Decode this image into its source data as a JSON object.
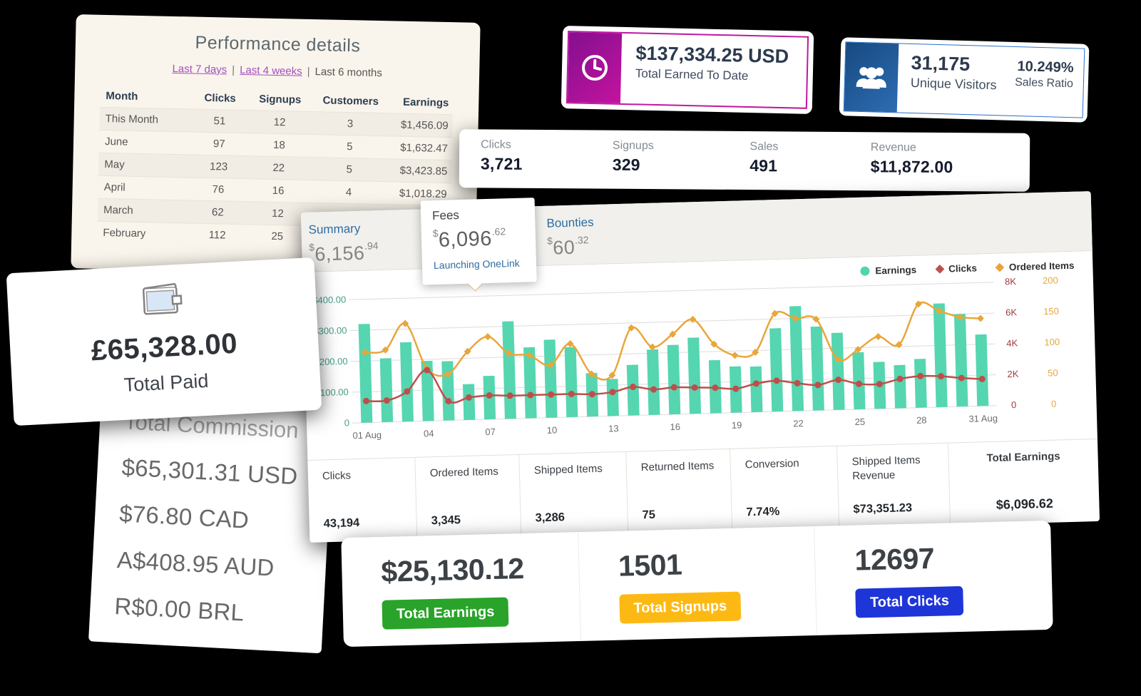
{
  "performance_card": {
    "title": "Performance details",
    "separator": "|",
    "filters": [
      {
        "label": "Last 7 days",
        "link": true
      },
      {
        "label": "Last 4 weeks",
        "link": true
      },
      {
        "label": "Last 6 months",
        "link": false
      }
    ],
    "columns": [
      "Month",
      "Clicks",
      "Signups",
      "Customers",
      "Earnings"
    ],
    "rows": [
      [
        "This Month",
        "51",
        "12",
        "3",
        "$1,456.09"
      ],
      [
        "June",
        "97",
        "18",
        "5",
        "$1,632.47"
      ],
      [
        "May",
        "123",
        "22",
        "5",
        "$3,423.85"
      ],
      [
        "April",
        "76",
        "16",
        "4",
        "$1,018.29"
      ],
      [
        "March",
        "62",
        "12",
        "",
        ""
      ],
      [
        "February",
        "112",
        "25",
        "",
        ""
      ]
    ]
  },
  "earned_card": {
    "value": "$137,334.25 USD",
    "label": "Total Earned To Date",
    "icon": "clock-icon",
    "accent": "#bf18a2"
  },
  "visitors_card": {
    "value": "31,175",
    "label": "Unique Visitors",
    "ratio_value": "10.249%",
    "ratio_label": "Sales Ratio",
    "icon": "users-icon",
    "accent": "#2a70c8"
  },
  "stats_bar": [
    {
      "label": "Clicks",
      "value": "3,721"
    },
    {
      "label": "Signups",
      "value": "329"
    },
    {
      "label": "Sales",
      "value": "491"
    },
    {
      "label": "Revenue",
      "value": "$11,872.00"
    }
  ],
  "associates_card": {
    "tabs": [
      {
        "label": "Summary",
        "currency": "$",
        "value_int": "6,156",
        "value_dec": ".94"
      },
      {
        "label": "Fees",
        "currency": "$",
        "value_int": "6,096",
        "value_dec": ".62",
        "link_label": "Launching OneLink"
      },
      {
        "label": "Bounties",
        "currency": "$",
        "value_int": "60",
        "value_dec": ".32"
      }
    ],
    "legend": [
      {
        "label": "Earnings",
        "color": "#52d3b0",
        "shape": "circle"
      },
      {
        "label": "Clicks",
        "color": "#c0504d",
        "shape": "diamond"
      },
      {
        "label": "Ordered Items",
        "color": "#e8a33d",
        "shape": "diamond"
      }
    ],
    "bottom_stats": [
      {
        "label": "Clicks",
        "value": "43,194",
        "emph": false
      },
      {
        "label": "Ordered Items",
        "value": "3,345",
        "emph": false
      },
      {
        "label": "Shipped Items",
        "value": "3,286",
        "emph": false
      },
      {
        "label": "Returned Items",
        "value": "75",
        "emph": false
      },
      {
        "label": "Conversion",
        "value": "7.74%",
        "emph": false
      },
      {
        "label": "Shipped Items Revenue",
        "value": "$73,351.23",
        "emph": false
      },
      {
        "label": "Total Earnings",
        "value": "$6,096.62",
        "emph": true
      }
    ]
  },
  "chart_data": {
    "type": "bar+line",
    "days": [
      1,
      2,
      3,
      4,
      5,
      6,
      7,
      8,
      9,
      10,
      11,
      12,
      13,
      14,
      15,
      16,
      17,
      18,
      19,
      20,
      21,
      22,
      23,
      24,
      25,
      26,
      27,
      28,
      29,
      30,
      31
    ],
    "x_ticks": [
      {
        "day": 1,
        "label": "01 Aug"
      },
      {
        "day": 4,
        "label": "04"
      },
      {
        "day": 7,
        "label": "07"
      },
      {
        "day": 10,
        "label": "10"
      },
      {
        "day": 13,
        "label": "13"
      },
      {
        "day": 16,
        "label": "16"
      },
      {
        "day": 19,
        "label": "19"
      },
      {
        "day": 22,
        "label": "22"
      },
      {
        "day": 25,
        "label": "25"
      },
      {
        "day": 28,
        "label": "28"
      },
      {
        "day": 31,
        "label": "31 Aug"
      }
    ],
    "series": [
      {
        "name": "Earnings",
        "type": "bar",
        "axis": "left_usd",
        "color": "#55d6b0",
        "values": [
          320,
          207,
          257,
          195,
          192,
          116,
          141,
          316,
          230,
          253,
          227,
          141,
          120,
          164,
          212,
          225,
          247,
          172,
          150,
          148,
          270,
          340,
          272,
          250,
          185,
          152,
          140,
          158,
          336,
          300,
          232
        ]
      },
      {
        "name": "Clicks",
        "type": "line",
        "axis": "right_clicks",
        "color": "#bf4e4b",
        "values": [
          1400,
          1400,
          1950,
          3300,
          1250,
          1450,
          1550,
          1500,
          1500,
          1500,
          1500,
          1450,
          1550,
          1850,
          1650,
          1750,
          1700,
          1650,
          1550,
          1850,
          2000,
          1800,
          1650,
          1950,
          1650,
          1600,
          1900,
          2050,
          2000,
          1850,
          1750
        ]
      },
      {
        "name": "Ordered Items",
        "type": "line",
        "axis": "right_items",
        "color": "#e9a63a",
        "values": [
          114,
          117,
          159,
          85,
          75,
          111,
          134,
          106,
          102,
          85,
          119,
          69,
          66,
          142,
          110,
          130,
          153,
          112,
          93,
          97,
          159,
          150,
          148,
          82,
          97,
          117,
          103,
          168,
          156,
          145,
          142
        ]
      }
    ],
    "left_axis": {
      "ticks": [
        "$400.00",
        "$300.00",
        "$200.00",
        "$100.00",
        "0"
      ],
      "max": 400,
      "color": "#43a08a"
    },
    "right_axis_clicks": {
      "ticks": [
        "8K",
        "6K",
        "4K",
        "2K",
        "0"
      ],
      "max": 8000,
      "color": "#9e3b3d"
    },
    "right_axis_items": {
      "ticks": [
        "200",
        "150",
        "100",
        "50",
        "0"
      ],
      "max": 200,
      "color": "#e9a63a"
    },
    "grid": true,
    "legend_position": "top-right"
  },
  "total_paid_card": {
    "amount": "£65,328.00",
    "label": "Total Paid",
    "icon": "wallet-icon"
  },
  "commission_card": {
    "title": "Total Commission",
    "lines": [
      "$65,301.31 USD",
      "$76.80 CAD",
      "A$408.95 AUD",
      "R$0.00 BRL"
    ]
  },
  "totals_card": [
    {
      "value": "$25,130.12",
      "label": "Total Earnings",
      "color": "#29a329"
    },
    {
      "value": "1501",
      "label": "Total Signups",
      "color": "#fdb913"
    },
    {
      "value": "12697",
      "label": "Total Clicks",
      "color": "#1e35d8"
    }
  ]
}
